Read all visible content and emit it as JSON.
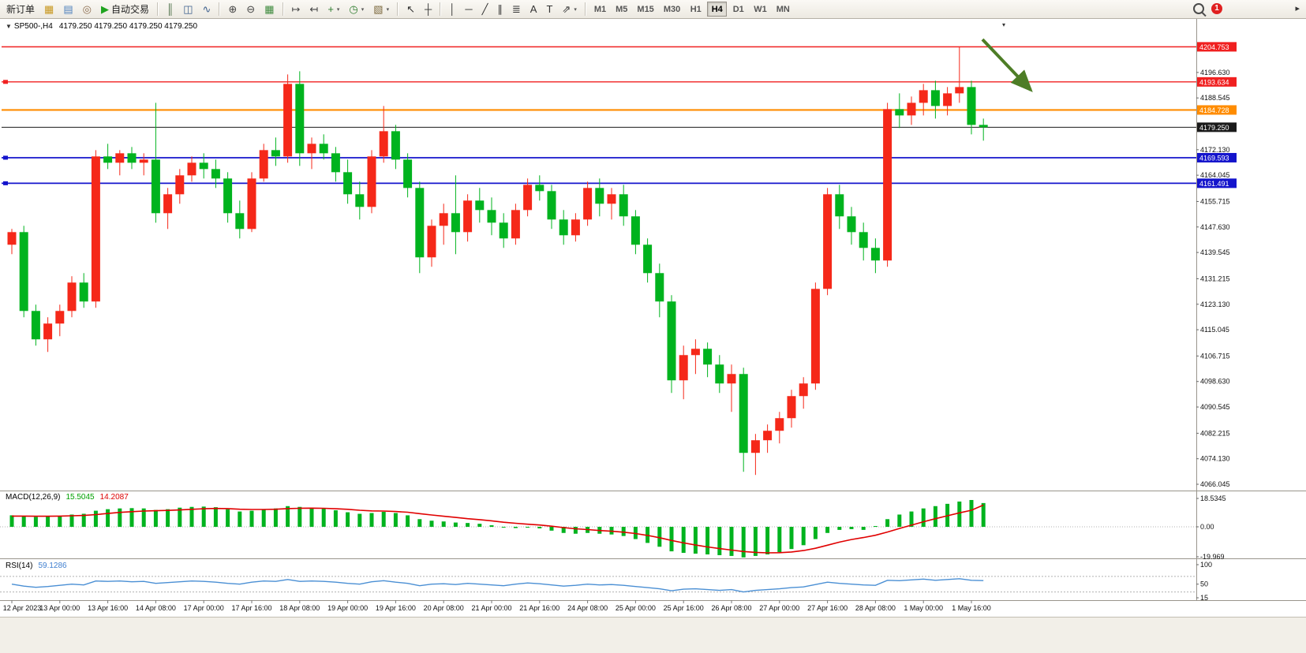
{
  "toolbar": {
    "items": [
      {
        "type": "button",
        "name": "new-order-button",
        "label": "新订单"
      },
      {
        "type": "icon",
        "name": "new-chart-icon",
        "glyph": "▦",
        "color": "#c8971e"
      },
      {
        "type": "icon",
        "name": "profiles-icon",
        "glyph": "▤",
        "color": "#4f81bd"
      },
      {
        "type": "icon",
        "name": "indicators-icon",
        "glyph": "◎",
        "color": "#8c6d4f"
      },
      {
        "type": "button",
        "name": "autotrade-button",
        "label": "自动交易",
        "glyph": "▶",
        "color": "#1fa31f"
      },
      {
        "type": "sep"
      },
      {
        "type": "icon",
        "name": "bar-chart-icon",
        "glyph": "║",
        "color": "#4a6e46"
      },
      {
        "type": "icon",
        "name": "candlestick-chart-icon",
        "glyph": "◫",
        "color": "#3f618f"
      },
      {
        "type": "icon",
        "name": "line-chart-icon",
        "glyph": "∿",
        "color": "#3f618f"
      },
      {
        "type": "sep"
      },
      {
        "type": "icon",
        "name": "zoom-in-icon",
        "glyph": "⊕",
        "color": "#444444"
      },
      {
        "type": "icon",
        "name": "zoom-out-icon",
        "glyph": "⊖",
        "color": "#444444"
      },
      {
        "type": "icon",
        "name": "tile-windows-icon",
        "glyph": "▦",
        "color": "#3d8a3d"
      },
      {
        "type": "sep"
      },
      {
        "type": "icon",
        "name": "auto-scroll-icon",
        "glyph": "↦",
        "color": "#444444"
      },
      {
        "type": "icon",
        "name": "chart-shift-icon",
        "glyph": "↤",
        "color": "#444444"
      },
      {
        "type": "dropdown",
        "name": "new-chart-dropdown",
        "glyph": "+",
        "color": "#2f7d2f"
      },
      {
        "type": "dropdown",
        "name": "period-dropdown",
        "glyph": "◷",
        "color": "#2f7d2f"
      },
      {
        "type": "dropdown",
        "name": "template-dropdown",
        "glyph": "▧",
        "color": "#7d6a3f"
      },
      {
        "type": "sep"
      },
      {
        "type": "icon",
        "name": "cursor-icon",
        "glyph": "↖",
        "color": "#333333"
      },
      {
        "type": "icon",
        "name": "crosshair-icon",
        "glyph": "┼",
        "color": "#333333"
      },
      {
        "type": "sep"
      },
      {
        "type": "icon",
        "name": "vertical-line-icon",
        "glyph": "│",
        "color": "#333333"
      },
      {
        "type": "icon",
        "name": "horizontal-line-icon",
        "glyph": "─",
        "color": "#333333"
      },
      {
        "type": "icon",
        "name": "trendline-icon",
        "glyph": "╱",
        "color": "#333333"
      },
      {
        "type": "icon",
        "name": "equidistant-channel-icon",
        "glyph": "∥",
        "color": "#333333"
      },
      {
        "type": "icon",
        "name": "fibonacci-icon",
        "glyph": "≣",
        "color": "#333333"
      },
      {
        "type": "icon",
        "name": "text-icon",
        "glyph": "A",
        "color": "#333333"
      },
      {
        "type": "icon",
        "name": "text-label-icon",
        "glyph": "T",
        "color": "#333333"
      },
      {
        "type": "dropdown",
        "name": "arrows-dropdown",
        "glyph": "⇗",
        "color": "#333333"
      },
      {
        "type": "sep"
      }
    ],
    "timeframes": [
      "M1",
      "M5",
      "M15",
      "M30",
      "H1",
      "H4",
      "D1",
      "W1",
      "MN"
    ],
    "active_timeframe": "H4",
    "badge": "1",
    "overflow_glyph": "▸"
  },
  "chart": {
    "collapse_glyph": "▼",
    "symbol_period": "SP500-,H4",
    "quotes": "4179.250 4179.250 4179.250 4179.250",
    "scroll_marker_glyph": "▾"
  },
  "chart_data": {
    "type": "candlestick",
    "symbol": "SP500-",
    "period": "H4",
    "current_price": "4179.250",
    "x_label_step": 4,
    "x_labels": [
      "12 Apr 2023",
      "13 Apr 00:00",
      "13 Apr 16:00",
      "14 Apr 08:00",
      "17 Apr 00:00",
      "17 Apr 16:00",
      "18 Apr 08:00",
      "19 Apr 00:00",
      "19 Apr 16:00",
      "20 Apr 08:00",
      "21 Apr 00:00",
      "21 Apr 16:00",
      "24 Apr 08:00",
      "25 Apr 00:00",
      "25 Apr 16:00",
      "26 Apr 08:00",
      "27 Apr 00:00",
      "27 Apr 16:00",
      "28 Apr 08:00",
      "1 May 00:00",
      "1 May 16:00"
    ],
    "price_axis_labels": [
      "4196.630",
      "4188.545",
      "4172.130",
      "4164.045",
      "4155.715",
      "4147.630",
      "4139.545",
      "4131.215",
      "4123.130",
      "4115.045",
      "4106.715",
      "4098.630",
      "4090.545",
      "4082.215",
      "4074.130",
      "4066.045"
    ],
    "colors": {
      "up": "#f52819",
      "down": "#00b31e",
      "macd_hist": "#00b31e",
      "macd_signal": "#e00000",
      "rsi_line": "#4a8fd4"
    },
    "price_lines": [
      {
        "label": "4204.753",
        "price": 4204.753,
        "color": "#f02020",
        "width": 1.4,
        "handle": false
      },
      {
        "label": "4193.634",
        "price": 4193.634,
        "color": "#f02020",
        "width": 1.4,
        "handle": true
      },
      {
        "label": "4184.728",
        "price": 4184.728,
        "color": "#ff8c00",
        "width": 2.2,
        "handle": false
      },
      {
        "label": "4179.250",
        "price": 4179.25,
        "color": "#1a1a1a",
        "width": 1,
        "handle": false
      },
      {
        "label": "4169.593",
        "price": 4169.593,
        "color": "#1414cc",
        "width": 1.8,
        "handle": true
      },
      {
        "label": "4161.491",
        "price": 4161.491,
        "color": "#1414cc",
        "width": 1.8,
        "handle": true
      }
    ],
    "ohlc": [
      [
        4142,
        4147,
        4139,
        4146
      ],
      [
        4146,
        4148,
        4119,
        4121
      ],
      [
        4121,
        4123,
        4110,
        4112
      ],
      [
        4112,
        4119,
        4108,
        4117
      ],
      [
        4117,
        4123,
        4113,
        4121
      ],
      [
        4121,
        4132,
        4119,
        4130
      ],
      [
        4130,
        4133,
        4122,
        4124
      ],
      [
        4124,
        4172,
        4122,
        4170
      ],
      [
        4170,
        4174,
        4166,
        4168
      ],
      [
        4168,
        4172,
        4164,
        4171
      ],
      [
        4171,
        4173,
        4166,
        4168
      ],
      [
        4168,
        4171,
        4164,
        4169
      ],
      [
        4169,
        4187,
        4149,
        4152
      ],
      [
        4152,
        4160,
        4147,
        4158
      ],
      [
        4158,
        4166,
        4155,
        4164
      ],
      [
        4164,
        4170,
        4162,
        4168
      ],
      [
        4168,
        4171,
        4163,
        4166
      ],
      [
        4166,
        4169,
        4160,
        4163
      ],
      [
        4163,
        4165,
        4149,
        4152
      ],
      [
        4152,
        4156,
        4144,
        4147
      ],
      [
        4147,
        4165,
        4146,
        4163
      ],
      [
        4163,
        4174,
        4162,
        4172
      ],
      [
        4172,
        4176,
        4167,
        4170
      ],
      [
        4170,
        4196,
        4168,
        4193
      ],
      [
        4193,
        4197,
        4167,
        4171
      ],
      [
        4171,
        4176,
        4166,
        4174
      ],
      [
        4174,
        4177,
        4169,
        4171
      ],
      [
        4171,
        4173,
        4162,
        4165
      ],
      [
        4165,
        4169,
        4155,
        4158
      ],
      [
        4158,
        4162,
        4150,
        4154
      ],
      [
        4154,
        4172,
        4152,
        4170
      ],
      [
        4170,
        4186,
        4168,
        4178
      ],
      [
        4178,
        4180,
        4166,
        4169
      ],
      [
        4169,
        4171,
        4157,
        4160
      ],
      [
        4160,
        4162,
        4133,
        4138
      ],
      [
        4138,
        4150,
        4135,
        4148
      ],
      [
        4148,
        4155,
        4142,
        4152
      ],
      [
        4152,
        4164,
        4139,
        4146
      ],
      [
        4146,
        4158,
        4143,
        4156
      ],
      [
        4156,
        4160,
        4149,
        4153
      ],
      [
        4153,
        4157,
        4145,
        4149
      ],
      [
        4149,
        4152,
        4141,
        4144
      ],
      [
        4144,
        4155,
        4142,
        4153
      ],
      [
        4153,
        4163,
        4151,
        4161
      ],
      [
        4161,
        4164,
        4156,
        4159
      ],
      [
        4159,
        4161,
        4147,
        4150
      ],
      [
        4150,
        4153,
        4142,
        4145
      ],
      [
        4145,
        4152,
        4143,
        4150
      ],
      [
        4150,
        4162,
        4148,
        4160
      ],
      [
        4160,
        4163,
        4151,
        4155
      ],
      [
        4155,
        4160,
        4150,
        4158
      ],
      [
        4158,
        4161,
        4148,
        4151
      ],
      [
        4151,
        4153,
        4139,
        4142
      ],
      [
        4142,
        4144,
        4130,
        4133
      ],
      [
        4133,
        4136,
        4119,
        4124
      ],
      [
        4124,
        4126,
        4095,
        4099
      ],
      [
        4099,
        4110,
        4093,
        4107
      ],
      [
        4107,
        4112,
        4101,
        4109
      ],
      [
        4109,
        4111,
        4100,
        4104
      ],
      [
        4104,
        4107,
        4095,
        4098
      ],
      [
        4098,
        4104,
        4089,
        4101
      ],
      [
        4101,
        4103,
        4070,
        4076
      ],
      [
        4076,
        4082,
        4069,
        4080
      ],
      [
        4080,
        4085,
        4076,
        4083
      ],
      [
        4083,
        4089,
        4079,
        4087
      ],
      [
        4087,
        4096,
        4084,
        4094
      ],
      [
        4094,
        4100,
        4090,
        4098
      ],
      [
        4098,
        4130,
        4096,
        4128
      ],
      [
        4128,
        4160,
        4126,
        4158
      ],
      [
        4158,
        4161,
        4147,
        4151
      ],
      [
        4151,
        4154,
        4142,
        4146
      ],
      [
        4146,
        4149,
        4137,
        4141
      ],
      [
        4141,
        4144,
        4133,
        4137
      ],
      [
        4137,
        4187,
        4135,
        4185
      ],
      [
        4185,
        4190,
        4179,
        4183
      ],
      [
        4183,
        4189,
        4180,
        4187
      ],
      [
        4187,
        4193,
        4183,
        4191
      ],
      [
        4191,
        4194,
        4182,
        4186
      ],
      [
        4186,
        4192,
        4183,
        4190
      ],
      [
        4190,
        4204.75,
        4187,
        4192
      ],
      [
        4192,
        4194,
        4177,
        4180
      ],
      [
        4180,
        4182,
        4175,
        4179.25
      ]
    ],
    "indicators": {
      "macd": {
        "label": "MACD(12,26,9)",
        "value_main": "15.5045",
        "value_signal": "14.2087",
        "axis_labels": [
          "18.5345",
          "0.00",
          "-19.969"
        ],
        "main": [
          7.5,
          7.0,
          6.5,
          6.8,
          7.2,
          8.0,
          8.5,
          10.5,
          11.5,
          12.0,
          12.2,
          12.0,
          11.0,
          11.5,
          12.5,
          13.0,
          13.2,
          12.8,
          11.5,
          10.0,
          10.5,
          11.5,
          12.0,
          13.5,
          13.0,
          12.5,
          11.8,
          10.8,
          9.5,
          8.5,
          9.0,
          9.8,
          9.0,
          7.5,
          5.0,
          4.0,
          3.5,
          2.8,
          2.5,
          2.0,
          1.0,
          -0.5,
          -0.8,
          -0.5,
          -1.0,
          -2.5,
          -4.0,
          -4.5,
          -4.0,
          -4.5,
          -5.0,
          -6.0,
          -8.0,
          -10.5,
          -13.0,
          -16.0,
          -17.0,
          -17.5,
          -18.0,
          -18.5,
          -19.0,
          -19.97,
          -19.0,
          -18.0,
          -16.5,
          -14.5,
          -12.0,
          -8.0,
          -4.0,
          -2.0,
          -1.5,
          -2.0,
          0.5,
          5.0,
          8.0,
          10.0,
          12.0,
          13.5,
          15.0,
          16.5,
          17.5,
          15.5045
        ],
        "signal": [
          7.0,
          7.0,
          6.9,
          6.9,
          7.0,
          7.2,
          7.4,
          8.0,
          8.7,
          9.4,
          9.9,
          10.3,
          10.5,
          10.7,
          11.0,
          11.4,
          11.8,
          12.0,
          11.9,
          11.5,
          11.3,
          11.3,
          11.5,
          11.9,
          12.1,
          12.2,
          12.1,
          11.8,
          11.4,
          10.8,
          10.4,
          10.3,
          10.0,
          9.5,
          8.6,
          7.7,
          6.9,
          6.1,
          5.3,
          4.7,
          3.9,
          3.0,
          2.3,
          1.7,
          1.2,
          0.4,
          -0.5,
          -1.3,
          -1.8,
          -2.4,
          -2.9,
          -3.5,
          -4.4,
          -5.6,
          -7.1,
          -8.9,
          -10.5,
          -11.9,
          -13.1,
          -14.2,
          -15.2,
          -16.1,
          -16.7,
          -17.0,
          -16.9,
          -16.4,
          -15.5,
          -14.0,
          -12.0,
          -10.0,
          -8.3,
          -7.0,
          -5.5,
          -3.4,
          -1.1,
          1.1,
          3.3,
          5.3,
          7.2,
          9.1,
          10.8,
          14.2087
        ]
      },
      "rsi": {
        "label": "RSI(14)",
        "value": "59.1286",
        "axis_labels": [
          "100",
          "50",
          "15"
        ],
        "levels": [
          70,
          30
        ],
        "values": [
          50,
          45,
          42,
          44,
          47,
          50,
          48,
          58,
          57,
          58,
          56,
          57,
          52,
          54,
          56,
          58,
          57,
          55,
          52,
          50,
          55,
          58,
          57,
          62,
          57,
          58,
          57,
          55,
          52,
          50,
          56,
          59,
          55,
          52,
          46,
          50,
          51,
          49,
          52,
          50,
          48,
          46,
          50,
          53,
          51,
          48,
          45,
          47,
          50,
          48,
          49,
          47,
          44,
          41,
          38,
          33,
          37,
          38,
          36,
          34,
          36,
          30,
          34,
          36,
          38,
          41,
          43,
          49,
          55,
          52,
          50,
          48,
          47,
          60,
          59,
          61,
          63,
          60,
          62,
          64,
          60,
          59.1286
        ]
      }
    },
    "annotation_arrow": {
      "color": "#4d7d26"
    }
  }
}
